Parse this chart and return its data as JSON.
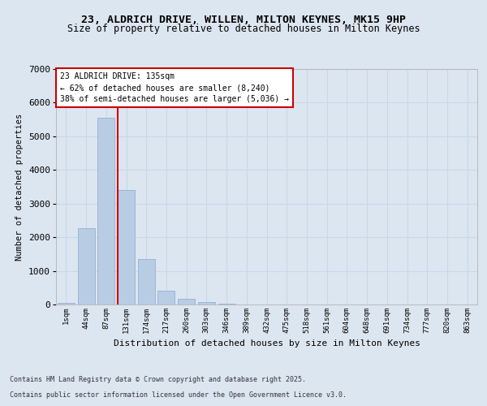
{
  "title_line1": "23, ALDRICH DRIVE, WILLEN, MILTON KEYNES, MK15 9HP",
  "title_line2": "Size of property relative to detached houses in Milton Keynes",
  "xlabel": "Distribution of detached houses by size in Milton Keynes",
  "ylabel": "Number of detached properties",
  "categories": [
    "1sqm",
    "44sqm",
    "87sqm",
    "131sqm",
    "174sqm",
    "217sqm",
    "260sqm",
    "303sqm",
    "346sqm",
    "389sqm",
    "432sqm",
    "475sqm",
    "518sqm",
    "561sqm",
    "604sqm",
    "648sqm",
    "691sqm",
    "734sqm",
    "777sqm",
    "820sqm",
    "863sqm"
  ],
  "values": [
    60,
    2280,
    5550,
    3400,
    1340,
    410,
    170,
    70,
    20,
    5,
    2,
    1,
    0,
    0,
    0,
    0,
    0,
    0,
    0,
    0,
    0
  ],
  "bar_color": "#b8cce4",
  "bar_edge_color": "#8eaacc",
  "grid_color": "#c8d8e8",
  "property_line_bin": 3,
  "property_line_color": "#cc0000",
  "annotation_text": "23 ALDRICH DRIVE: 135sqm\n← 62% of detached houses are smaller (8,240)\n38% of semi-detached houses are larger (5,036) →",
  "annotation_box_color": "#ffffff",
  "annotation_box_edge": "#cc0000",
  "ylim": [
    0,
    7000
  ],
  "yticks": [
    0,
    1000,
    2000,
    3000,
    4000,
    5000,
    6000,
    7000
  ],
  "background_color": "#dce6f1",
  "axes_background": "#dce6f1",
  "footnote_line1": "Contains HM Land Registry data © Crown copyright and database right 2025.",
  "footnote_line2": "Contains public sector information licensed under the Open Government Licence v3.0."
}
